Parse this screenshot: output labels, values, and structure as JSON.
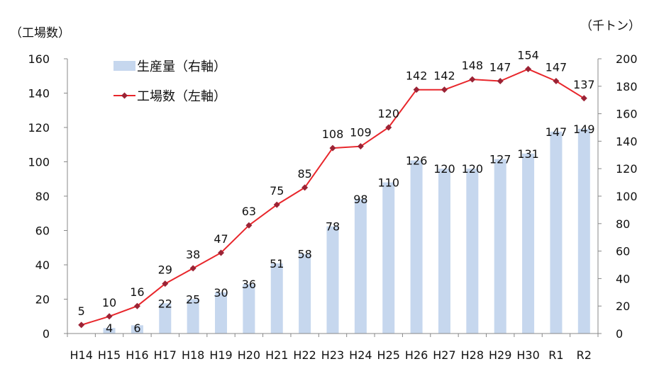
{
  "chart_data": {
    "type": "bar",
    "title": "",
    "left_axis_unit": "（工場数）",
    "right_axis_unit": "（千トン）",
    "categories": [
      "H14",
      "H15",
      "H16",
      "H17",
      "H18",
      "H19",
      "H20",
      "H21",
      "H22",
      "H23",
      "H24",
      "H25",
      "H26",
      "H27",
      "H28",
      "H29",
      "H30",
      "R1",
      "R2"
    ],
    "series": [
      {
        "name": "生産量（右軸）",
        "type": "bar",
        "axis": "right",
        "values": [
          0,
          4,
          6,
          22,
          25,
          30,
          36,
          51,
          58,
          78,
          98,
          110,
          126,
          120,
          120,
          127,
          131,
          147,
          149
        ],
        "labels": [
          "",
          "4",
          "6",
          "22",
          "25",
          "30",
          "36",
          "51",
          "58",
          "78",
          "98",
          "110",
          "126",
          "120",
          "120",
          "127",
          "131",
          "147",
          "149"
        ]
      },
      {
        "name": "工場数（左軸）",
        "type": "line",
        "axis": "left",
        "values": [
          5,
          10,
          16,
          29,
          38,
          47,
          63,
          75,
          85,
          108,
          109,
          120,
          142,
          142,
          148,
          147,
          154,
          147,
          137
        ],
        "labels": [
          "5",
          "10",
          "16",
          "29",
          "38",
          "47",
          "63",
          "75",
          "85",
          "108",
          "109",
          "120",
          "142",
          "142",
          "148",
          "147",
          "154",
          "147",
          "137"
        ]
      }
    ],
    "left_ylim": [
      0,
      160
    ],
    "left_ticks": [
      "0",
      "20",
      "40",
      "60",
      "80",
      "100",
      "120",
      "140",
      "160"
    ],
    "right_ylim": [
      0,
      200
    ],
    "right_ticks": [
      "0",
      "20",
      "40",
      "60",
      "80",
      "100",
      "120",
      "140",
      "160",
      "180",
      "200"
    ],
    "grid": false,
    "legend_position": "top-left",
    "colors": {
      "bar": "#c6d7ee",
      "line": "#e8262b",
      "marker": "#9b2335",
      "axis": "#888888"
    }
  }
}
